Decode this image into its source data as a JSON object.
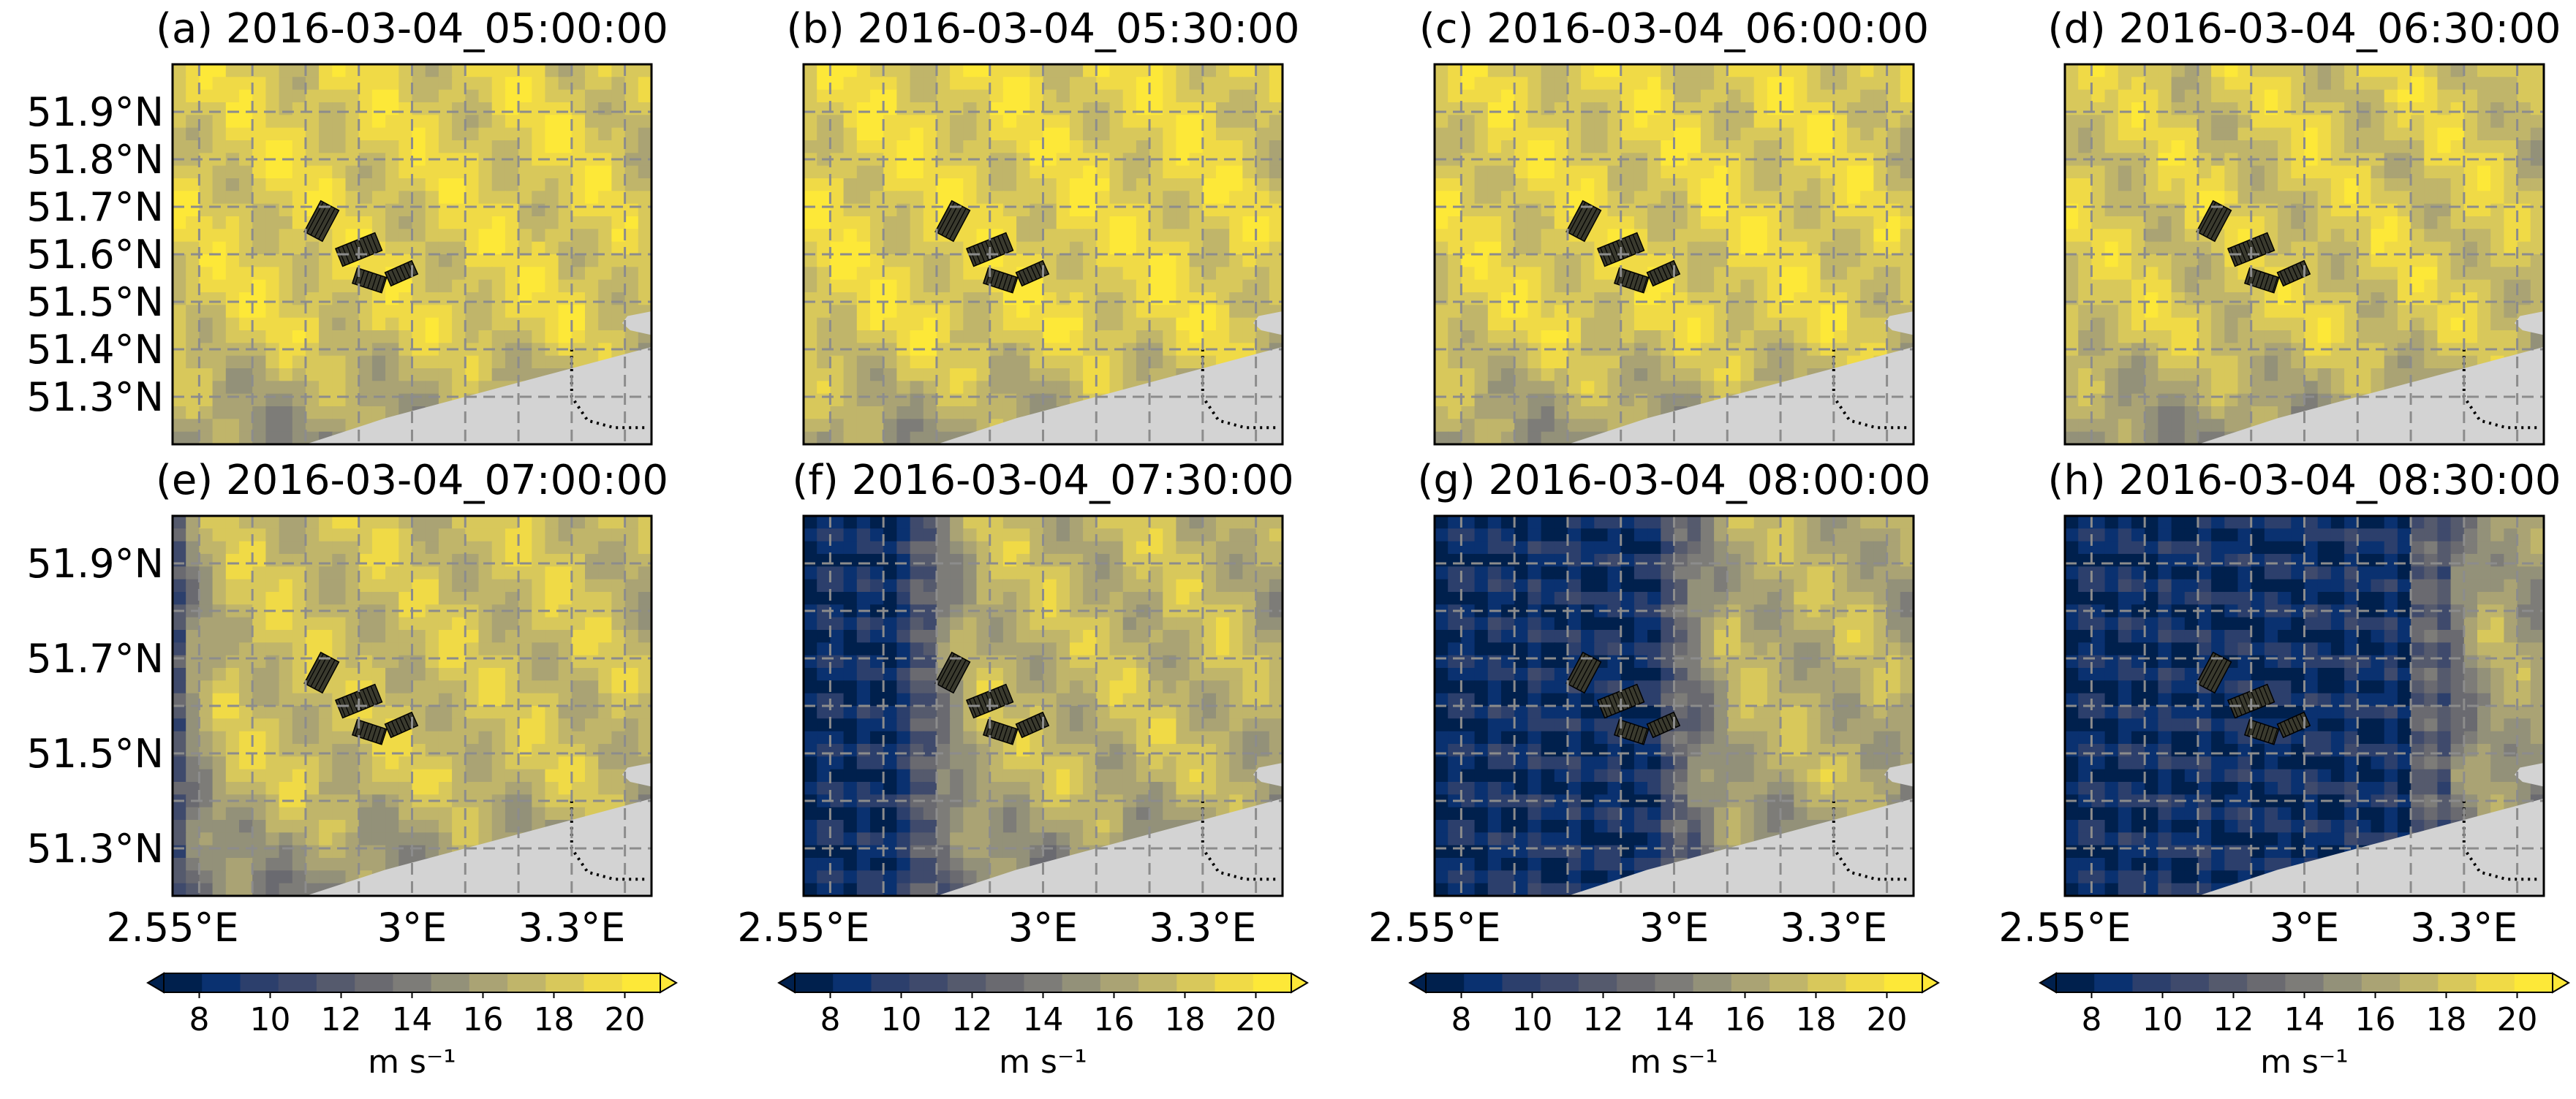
{
  "chart_data": {
    "type": "heatmap",
    "variable_unit": "m s⁻¹",
    "colorbar": {
      "ticks": [
        "8",
        "10",
        "12",
        "14",
        "16",
        "18",
        "20"
      ],
      "min": 7,
      "max": 21,
      "extend": "both",
      "colors": [
        "#00204d",
        "#0a3170",
        "#2c3f6c",
        "#3f4a6c",
        "#555a6d",
        "#6a6a70",
        "#7d7c78",
        "#939179",
        "#aaa374",
        "#c0b56a",
        "#d8c85b",
        "#f0da46",
        "#fde838"
      ]
    },
    "axes": {
      "x_ticks": [
        "2.55°E",
        "3°E",
        "3.3°E"
      ],
      "x_tick_values": [
        2.55,
        3.0,
        3.3
      ],
      "xlim": [
        2.55,
        3.45
      ],
      "ylim": [
        51.2,
        52.0
      ],
      "y_ticks_top": [
        "51.9°N",
        "51.8°N",
        "51.7°N",
        "51.6°N",
        "51.5°N",
        "51.4°N",
        "51.3°N"
      ],
      "y_tick_values_top": [
        51.9,
        51.8,
        51.7,
        51.6,
        51.5,
        51.4,
        51.3
      ],
      "y_ticks_bottom": [
        "51.9°N",
        "51.7°N",
        "51.5°N",
        "51.3°N"
      ],
      "y_tick_values_bottom": [
        51.9,
        51.7,
        51.5,
        51.3
      ],
      "grid": true,
      "land_color": "#d3d3d3"
    },
    "panels": [
      {
        "label": "(a) 2016-03-04_05:00:00",
        "front_lon": null,
        "base_speed": 18.6
      },
      {
        "label": "(b) 2016-03-04_05:30:00",
        "front_lon": null,
        "base_speed": 18.9
      },
      {
        "label": "(c) 2016-03-04_06:00:00",
        "front_lon": null,
        "base_speed": 18.7
      },
      {
        "label": "(d) 2016-03-04_06:30:00",
        "front_lon": null,
        "base_speed": 18.3
      },
      {
        "label": "(e) 2016-03-04_07:00:00",
        "front_lon": 2.57,
        "base_speed": 17.8
      },
      {
        "label": "(f) 2016-03-04_07:30:00",
        "front_lon": 2.8,
        "base_speed": 17.3
      },
      {
        "label": "(g) 2016-03-04_08:00:00",
        "front_lon": 3.03,
        "base_speed": 16.9
      },
      {
        "label": "(h) 2016-03-04_08:30:00",
        "front_lon": 3.27,
        "base_speed": 16.4
      }
    ]
  }
}
